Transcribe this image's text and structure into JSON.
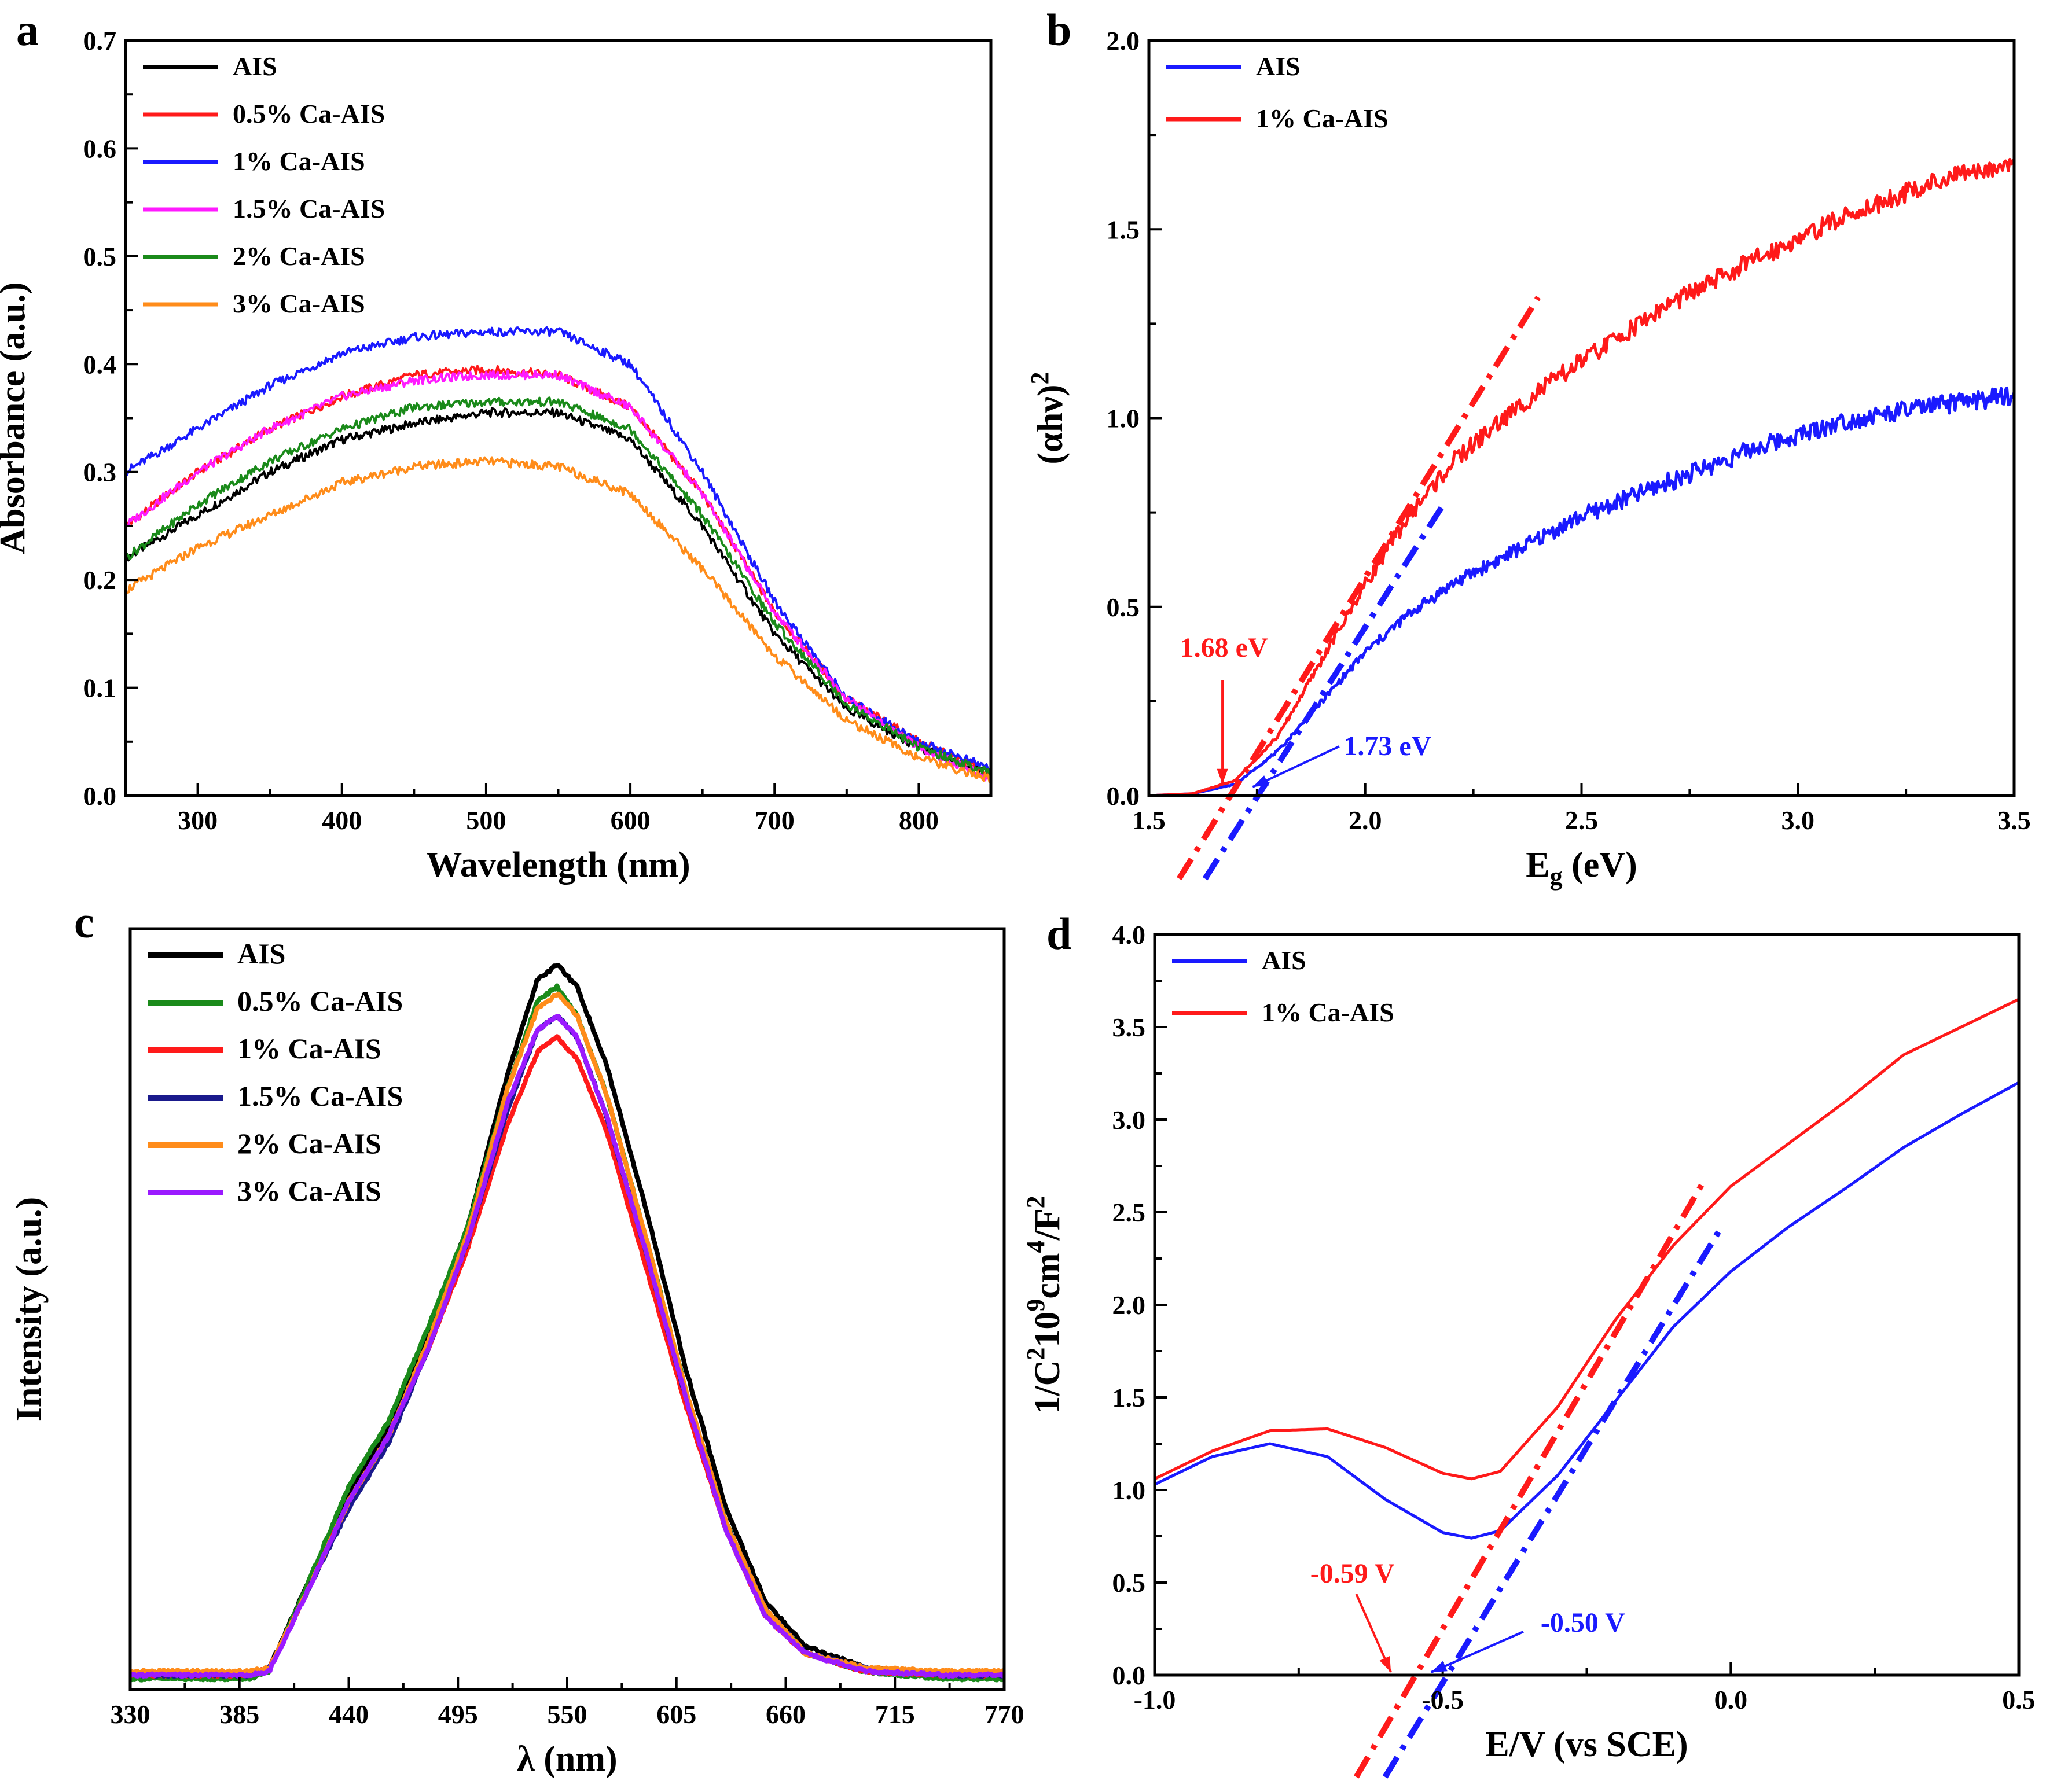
{
  "colors": {
    "black": "#000000",
    "red": "#ff1a1a",
    "blue": "#1a1aff",
    "magenta": "#ff1aff",
    "green": "#1a8a1a",
    "orange": "#ff8c1a",
    "navy": "#1a1a8c",
    "purple": "#9b1aff"
  },
  "chart_data": [
    {
      "panel": "a",
      "type": "line",
      "xlabel": "Wavelength (nm)",
      "ylabel": "Absorbance (a.u.)",
      "xlim": [
        250,
        850
      ],
      "ylim": [
        0.0,
        0.7
      ],
      "xticks": [
        "300",
        "400",
        "500",
        "600",
        "700",
        "800"
      ],
      "yticks": [
        "0.0",
        "0.1",
        "0.2",
        "0.3",
        "0.4",
        "0.5",
        "0.6",
        "0.7"
      ],
      "legend_position": "top-left",
      "x": [
        250,
        300,
        350,
        400,
        450,
        500,
        550,
        600,
        650,
        700,
        750,
        800,
        850
      ],
      "series": [
        {
          "name": "AIS",
          "color": "black",
          "values": [
            0.22,
            0.26,
            0.3,
            0.33,
            0.345,
            0.355,
            0.355,
            0.33,
            0.25,
            0.15,
            0.08,
            0.045,
            0.02
          ]
        },
        {
          "name": "0.5% Ca-AIS",
          "color": "red",
          "values": [
            0.25,
            0.3,
            0.34,
            0.37,
            0.39,
            0.395,
            0.39,
            0.36,
            0.28,
            0.17,
            0.09,
            0.05,
            0.02
          ]
        },
        {
          "name": "1% Ca-AIS",
          "color": "blue",
          "values": [
            0.3,
            0.34,
            0.38,
            0.41,
            0.425,
            0.43,
            0.43,
            0.4,
            0.3,
            0.18,
            0.09,
            0.05,
            0.025
          ]
        },
        {
          "name": "1.5% Ca-AIS",
          "color": "magenta",
          "values": [
            0.25,
            0.3,
            0.34,
            0.37,
            0.385,
            0.39,
            0.39,
            0.36,
            0.28,
            0.17,
            0.09,
            0.045,
            0.015
          ]
        },
        {
          "name": "2% Ca-AIS",
          "color": "green",
          "values": [
            0.22,
            0.27,
            0.31,
            0.34,
            0.36,
            0.365,
            0.365,
            0.34,
            0.26,
            0.16,
            0.085,
            0.045,
            0.02
          ]
        },
        {
          "name": "3% Ca-AIS",
          "color": "orange",
          "values": [
            0.19,
            0.23,
            0.26,
            0.29,
            0.305,
            0.31,
            0.305,
            0.28,
            0.21,
            0.13,
            0.07,
            0.035,
            0.015
          ]
        }
      ]
    },
    {
      "panel": "b",
      "type": "line",
      "xlabel_main": "E",
      "xlabel_sub": "g",
      "xlabel_rest": " (eV)",
      "ylabel_main": "(αhν)",
      "ylabel_sup": "2",
      "xlim": [
        1.5,
        3.5
      ],
      "ylim": [
        0.0,
        2.0
      ],
      "xticks": [
        "1.5",
        "2.0",
        "2.5",
        "3.0",
        "3.5"
      ],
      "yticks": [
        "0.0",
        "0.5",
        "1.0",
        "1.5",
        "2.0"
      ],
      "legend_position": "top-left",
      "x": [
        1.5,
        1.6,
        1.7,
        1.8,
        1.9,
        2.0,
        2.1,
        2.2,
        2.3,
        2.4,
        2.5,
        2.7,
        2.9,
        3.1,
        3.3,
        3.5
      ],
      "series": [
        {
          "name": "AIS",
          "color": "blue",
          "values": [
            0.0,
            0.005,
            0.03,
            0.12,
            0.25,
            0.38,
            0.48,
            0.56,
            0.62,
            0.68,
            0.74,
            0.83,
            0.92,
            0.99,
            1.03,
            1.06
          ]
        },
        {
          "name": "1% Ca-AIS",
          "color": "red",
          "values": [
            0.0,
            0.005,
            0.04,
            0.16,
            0.36,
            0.56,
            0.74,
            0.88,
            0.98,
            1.07,
            1.15,
            1.3,
            1.42,
            1.53,
            1.62,
            1.68
          ]
        }
      ],
      "fit_lines": [
        {
          "color": "red",
          "x": [
            1.57,
            2.4
          ],
          "y": [
            -0.22,
            1.32
          ]
        },
        {
          "color": "blue",
          "x": [
            1.63,
            2.18
          ],
          "y": [
            -0.22,
            0.77
          ]
        }
      ],
      "annotations": [
        {
          "text": "1.68 eV",
          "color": "red",
          "x": 1.68
        },
        {
          "text": "1.73 eV",
          "color": "blue",
          "x": 1.73
        }
      ]
    },
    {
      "panel": "c",
      "type": "line",
      "xlabel": "λ (nm)",
      "ylabel": "Intensity (a.u.)",
      "xlim": [
        330,
        770
      ],
      "ylim": [
        0.0,
        1.05
      ],
      "xticks": [
        "330",
        "385",
        "440",
        "495",
        "550",
        "605",
        "660",
        "715",
        "770"
      ],
      "legend_position": "top-left",
      "x": [
        330,
        360,
        390,
        400,
        420,
        440,
        460,
        480,
        500,
        520,
        535,
        545,
        555,
        570,
        590,
        610,
        630,
        650,
        670,
        700,
        740,
        770
      ],
      "series": [
        {
          "name": "AIS",
          "color": "black",
          "values": [
            0.02,
            0.02,
            0.02,
            0.03,
            0.15,
            0.27,
            0.36,
            0.49,
            0.64,
            0.85,
            0.98,
            1.0,
            0.97,
            0.86,
            0.66,
            0.44,
            0.25,
            0.12,
            0.06,
            0.03,
            0.02,
            0.02
          ]
        },
        {
          "name": "0.5% Ca-AIS",
          "color": "green",
          "values": [
            0.015,
            0.015,
            0.015,
            0.025,
            0.15,
            0.28,
            0.37,
            0.5,
            0.64,
            0.83,
            0.95,
            0.97,
            0.93,
            0.82,
            0.62,
            0.41,
            0.23,
            0.11,
            0.05,
            0.025,
            0.015,
            0.015
          ]
        },
        {
          "name": "1% Ca-AIS",
          "color": "red",
          "values": [
            0.02,
            0.02,
            0.02,
            0.03,
            0.14,
            0.26,
            0.35,
            0.47,
            0.61,
            0.78,
            0.88,
            0.9,
            0.87,
            0.77,
            0.58,
            0.39,
            0.22,
            0.1,
            0.05,
            0.025,
            0.02,
            0.02
          ]
        },
        {
          "name": "1.5% Ca-AIS",
          "color": "navy",
          "values": [
            0.02,
            0.02,
            0.02,
            0.03,
            0.14,
            0.25,
            0.34,
            0.47,
            0.62,
            0.8,
            0.91,
            0.93,
            0.9,
            0.79,
            0.6,
            0.4,
            0.23,
            0.11,
            0.05,
            0.03,
            0.02,
            0.02
          ]
        },
        {
          "name": "2% Ca-AIS",
          "color": "orange",
          "values": [
            0.025,
            0.025,
            0.025,
            0.03,
            0.14,
            0.26,
            0.35,
            0.48,
            0.63,
            0.83,
            0.94,
            0.96,
            0.93,
            0.82,
            0.62,
            0.41,
            0.23,
            0.11,
            0.05,
            0.03,
            0.025,
            0.025
          ]
        },
        {
          "name": "3% Ca-AIS",
          "color": "purple",
          "values": [
            0.02,
            0.02,
            0.02,
            0.025,
            0.14,
            0.26,
            0.35,
            0.47,
            0.62,
            0.81,
            0.91,
            0.93,
            0.9,
            0.79,
            0.6,
            0.4,
            0.22,
            0.1,
            0.05,
            0.025,
            0.02,
            0.02
          ]
        }
      ]
    },
    {
      "panel": "d",
      "type": "line",
      "xlabel": "E/V (vs SCE)",
      "ylabel_parts": [
        "1/C",
        "2",
        "10",
        "9",
        "cm",
        "4",
        "/F",
        "2"
      ],
      "xlim": [
        -1.0,
        0.5
      ],
      "ylim": [
        0.0,
        4.0
      ],
      "xticks": [
        "-1.0",
        "-0.5",
        "0.0",
        "0.5"
      ],
      "yticks": [
        "0.0",
        "0.5",
        "1.0",
        "1.5",
        "2.0",
        "2.5",
        "3.0",
        "3.5",
        "4.0"
      ],
      "legend_position": "top-left",
      "x": [
        -1.0,
        -0.9,
        -0.8,
        -0.7,
        -0.6,
        -0.5,
        -0.45,
        -0.4,
        -0.3,
        -0.2,
        -0.1,
        0.0,
        0.1,
        0.2,
        0.3,
        0.4,
        0.5
      ],
      "series": [
        {
          "name": "AIS",
          "color": "blue",
          "values": [
            1.03,
            1.18,
            1.25,
            1.18,
            0.95,
            0.77,
            0.74,
            0.78,
            1.08,
            1.48,
            1.88,
            2.18,
            2.42,
            2.63,
            2.85,
            3.03,
            3.2
          ]
        },
        {
          "name": "1% Ca-AIS",
          "color": "red",
          "values": [
            1.06,
            1.21,
            1.32,
            1.33,
            1.23,
            1.09,
            1.06,
            1.1,
            1.45,
            1.92,
            2.32,
            2.64,
            2.87,
            3.1,
            3.35,
            3.5,
            3.65
          ]
        }
      ],
      "fit_lines": [
        {
          "color": "red",
          "x": [
            -0.65,
            -0.05
          ],
          "y": [
            -0.55,
            2.65
          ]
        },
        {
          "color": "blue",
          "x": [
            -0.6,
            -0.02
          ],
          "y": [
            -0.55,
            2.4
          ]
        }
      ],
      "annotations": [
        {
          "text": "-0.59 V",
          "color": "red",
          "x": -0.59
        },
        {
          "text": "-0.50 V",
          "color": "blue",
          "x": -0.5
        }
      ]
    }
  ],
  "panel_labels": [
    "a",
    "b",
    "c",
    "d"
  ]
}
